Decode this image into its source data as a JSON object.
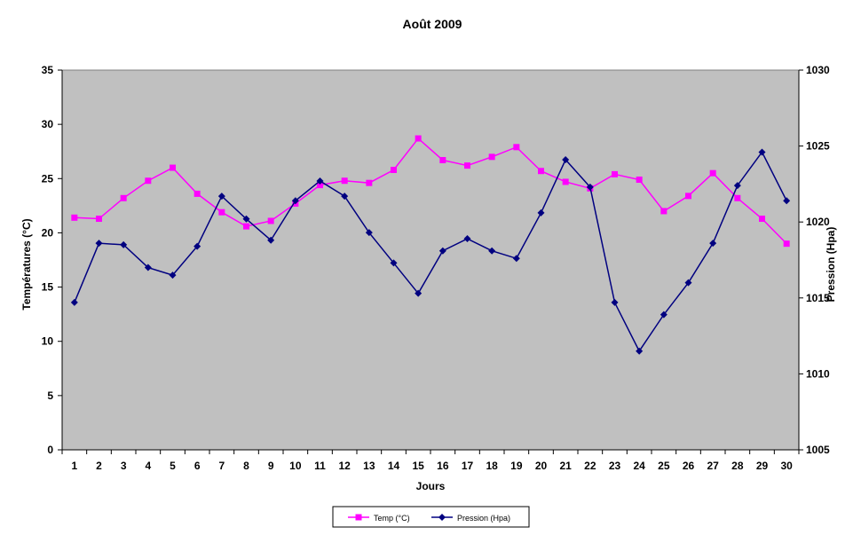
{
  "chart_data": {
    "type": "line",
    "title": "Août 2009",
    "xlabel": "Jours",
    "ylabel_left": "Températures (°C)",
    "ylabel_right": "Pression (Hpa)",
    "x": [
      1,
      2,
      3,
      4,
      5,
      6,
      7,
      8,
      9,
      10,
      11,
      12,
      13,
      14,
      15,
      16,
      17,
      18,
      19,
      20,
      21,
      22,
      23,
      24,
      25,
      26,
      27,
      28,
      29,
      30
    ],
    "ylim_left": [
      0,
      35
    ],
    "yticks_left": [
      0,
      5,
      10,
      15,
      20,
      25,
      30,
      35
    ],
    "ylim_right": [
      1005,
      1030
    ],
    "yticks_right": [
      1005,
      1010,
      1015,
      1020,
      1025,
      1030
    ],
    "grid": false,
    "plot_background": "#c0c0c0",
    "legend_position": "bottom",
    "series": [
      {
        "name": "Temp (°C)",
        "axis": "left",
        "color": "#ff00ff",
        "marker": "square",
        "values": [
          21.4,
          21.3,
          23.2,
          24.8,
          26.0,
          23.6,
          21.9,
          20.6,
          21.1,
          22.7,
          24.4,
          24.8,
          24.6,
          25.8,
          28.7,
          26.7,
          26.2,
          27.0,
          27.9,
          25.7,
          24.7,
          24.1,
          25.4,
          24.9,
          22.0,
          23.4,
          25.5,
          23.2,
          21.3,
          19.0
        ]
      },
      {
        "name": "Pression (Hpa)",
        "axis": "right",
        "color": "#000080",
        "marker": "diamond",
        "values": [
          1014.7,
          1018.6,
          1018.5,
          1017.0,
          1016.5,
          1018.4,
          1021.7,
          1020.2,
          1018.8,
          1021.4,
          1022.7,
          1021.7,
          1019.3,
          1017.3,
          1015.3,
          1018.1,
          1018.9,
          1018.1,
          1017.6,
          1020.6,
          1024.1,
          1022.3,
          1014.7,
          1011.5,
          1013.9,
          1016.0,
          1018.6,
          1022.4,
          1024.6,
          1021.4
        ]
      }
    ]
  }
}
